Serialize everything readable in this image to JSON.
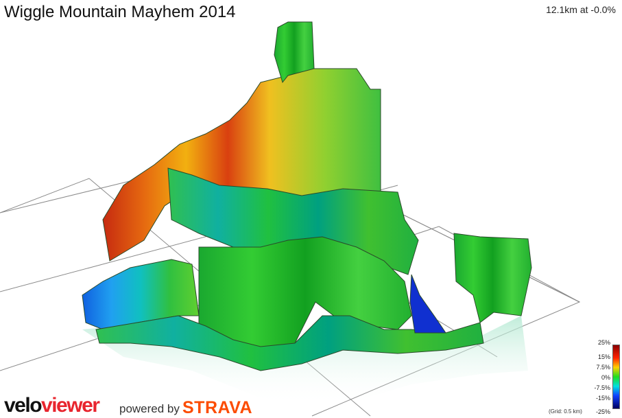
{
  "header": {
    "title": "Wiggle Mountain Mayhem 2014",
    "readout": "12.1km at -0.0%"
  },
  "legend": {
    "gradient_labels": [
      "25%",
      "15%",
      "7.5%",
      "0%",
      "-7.5%",
      "-15%",
      "-25%"
    ],
    "grid_note": "(Grid: 0.5 km)",
    "colors": {
      "max": "#8b0000",
      "high": "#e8401a",
      "mid_high": "#f0a000",
      "zero": "#22cc22",
      "mid_low": "#00d0d0",
      "low": "#1040e0",
      "min": "#000080"
    }
  },
  "footer": {
    "brand_part1": "velo",
    "brand_part2": "viewer",
    "powered_by": "powered by",
    "strava": "STRAVA"
  }
}
